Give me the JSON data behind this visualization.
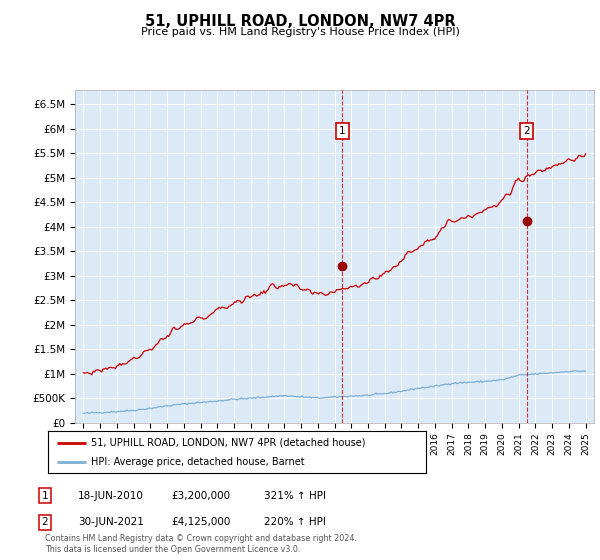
{
  "title": "51, UPHILL ROAD, LONDON, NW7 4PR",
  "subtitle": "Price paid vs. HM Land Registry's House Price Index (HPI)",
  "plot_bg_color": "#dce9f7",
  "hpi_color": "#7bafd4",
  "price_color": "#cc0000",
  "ylim": [
    0,
    6800000
  ],
  "yticks": [
    0,
    500000,
    1000000,
    1500000,
    2000000,
    2500000,
    3000000,
    3500000,
    4000000,
    4500000,
    5000000,
    5500000,
    6000000,
    6500000
  ],
  "ytick_labels": [
    "£0",
    "£500K",
    "£1M",
    "£1.5M",
    "£2M",
    "£2.5M",
    "£3M",
    "£3.5M",
    "£4M",
    "£4.5M",
    "£5M",
    "£5.5M",
    "£6M",
    "£6.5M"
  ],
  "xlim_left": 1994.5,
  "xlim_right": 2025.5,
  "m1_x": 2010.46,
  "m1_y": 3200000,
  "m1_label": "1",
  "m2_x": 2021.49,
  "m2_y": 4125000,
  "m2_label": "2",
  "legend_line1": "51, UPHILL ROAD, LONDON, NW7 4PR (detached house)",
  "legend_line2": "HPI: Average price, detached house, Barnet",
  "ann1_date": "18-JUN-2010",
  "ann1_price": "£3,200,000",
  "ann1_hpi": "321% ↑ HPI",
  "ann2_date": "30-JUN-2021",
  "ann2_price": "£4,125,000",
  "ann2_hpi": "220% ↑ HPI",
  "footer": "Contains HM Land Registry data © Crown copyright and database right 2024.\nThis data is licensed under the Open Government Licence v3.0.",
  "hpi_years": [
    1995,
    1996,
    1997,
    1998,
    1999,
    2000,
    2001,
    2002,
    2003,
    2004,
    2005,
    2006,
    2007,
    2008,
    2009,
    2010,
    2011,
    2012,
    2013,
    2014,
    2015,
    2016,
    2017,
    2018,
    2019,
    2020,
    2021,
    2022,
    2023,
    2024,
    2025
  ],
  "hpi_vals": [
    195000,
    210000,
    230000,
    255000,
    295000,
    345000,
    385000,
    415000,
    445000,
    480000,
    500000,
    530000,
    555000,
    530000,
    505000,
    525000,
    545000,
    560000,
    595000,
    645000,
    705000,
    745000,
    805000,
    825000,
    845000,
    875000,
    970000,
    995000,
    1020000,
    1050000,
    1055000
  ],
  "price_seed": 77,
  "price_noise_scale": 55000,
  "hpi_noise_scale": 8000,
  "hpi_seed": 42
}
